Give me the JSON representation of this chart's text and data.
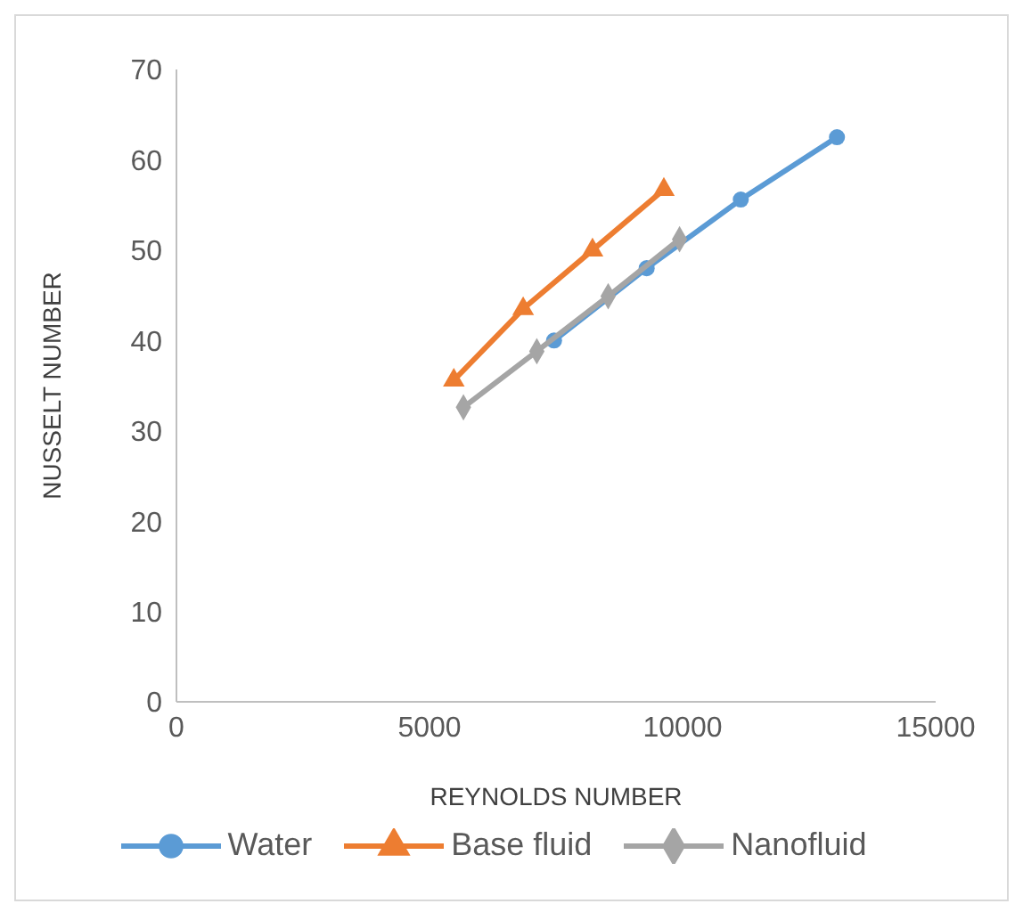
{
  "chart_data": {
    "type": "line",
    "xlabel": "REYNOLDS NUMBER",
    "ylabel": "NUSSELT NUMBER",
    "xlim": [
      0,
      15000
    ],
    "xticks": [
      0,
      5000,
      10000,
      15000
    ],
    "ylim": [
      0,
      70
    ],
    "yticks": [
      0,
      10,
      20,
      30,
      40,
      50,
      60,
      70
    ],
    "grid": false,
    "legend": "bottom",
    "series": [
      {
        "name": "Water",
        "color": "#5b9bd5",
        "marker": "circle",
        "x": [
          7460,
          9290,
          11150,
          13050
        ],
        "values": [
          40,
          48,
          55.6,
          62.5
        ]
      },
      {
        "name": "Base fluid",
        "color": "#ed7d31",
        "marker": "triangle",
        "x": [
          5480,
          6850,
          8220,
          9630
        ],
        "values": [
          35.6,
          43.5,
          50,
          56.7
        ]
      },
      {
        "name": "Nanofluid",
        "color": "#a5a5a5",
        "marker": "diamond",
        "x": [
          5670,
          7120,
          8530,
          9940
        ],
        "values": [
          32.6,
          38.8,
          44.9,
          51.2
        ]
      }
    ]
  }
}
